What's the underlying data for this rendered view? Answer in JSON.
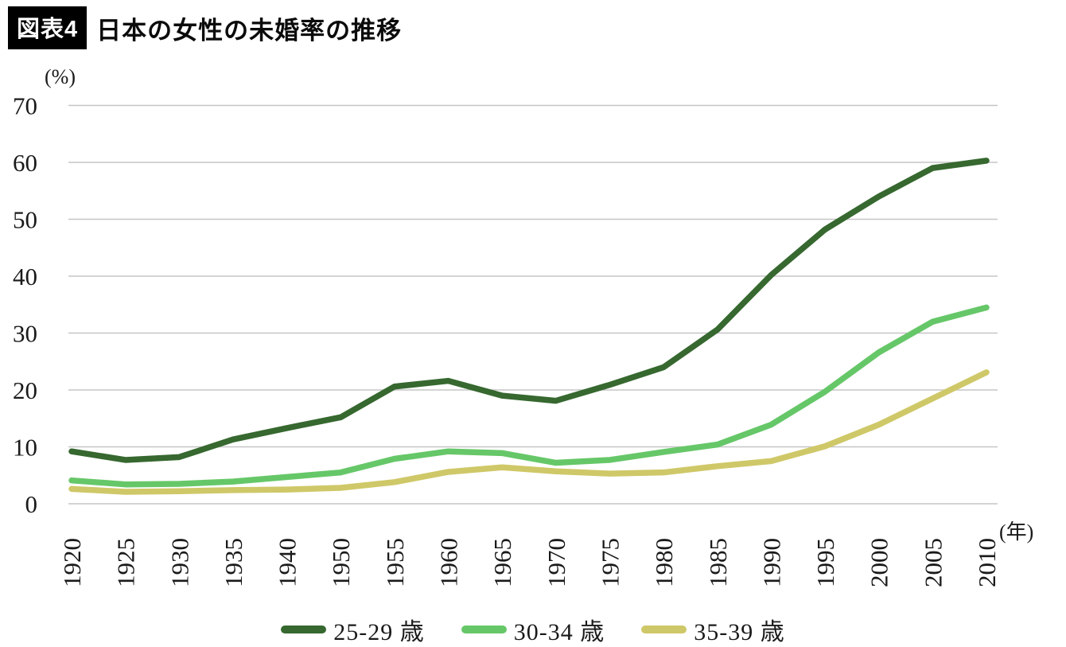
{
  "header": {
    "badge": "図表4",
    "title": "日本の女性の未婚率の推移"
  },
  "chart_data": {
    "type": "line",
    "title": "日本の女性の未婚率の推移",
    "y_unit_label": "(%)",
    "x_unit_label": "(年)",
    "ylim": [
      0,
      70
    ],
    "yticks": [
      0,
      10,
      20,
      30,
      40,
      50,
      60,
      70
    ],
    "grid": "horizontal",
    "gridline_color": "#c6c6c6",
    "legend_position": "bottom",
    "categories": [
      "1920",
      "1925",
      "1930",
      "1935",
      "1940",
      "1950",
      "1955",
      "1960",
      "1965",
      "1970",
      "1975",
      "1980",
      "1985",
      "1990",
      "1995",
      "2000",
      "2005",
      "2010"
    ],
    "series": [
      {
        "name": "25-29 歳",
        "color": "#36682f",
        "values": [
          9.2,
          7.7,
          8.2,
          11.3,
          13.3,
          15.2,
          20.6,
          21.6,
          19.0,
          18.1,
          20.9,
          24.0,
          30.6,
          40.2,
          48.2,
          54.0,
          59.0,
          60.3
        ]
      },
      {
        "name": "30-34 歳",
        "color": "#66c768",
        "values": [
          4.1,
          3.4,
          3.5,
          3.9,
          4.7,
          5.5,
          7.9,
          9.2,
          8.9,
          7.2,
          7.7,
          9.1,
          10.4,
          13.9,
          19.7,
          26.6,
          32.0,
          34.5
        ]
      },
      {
        "name": "35-39 歳",
        "color": "#cfc868",
        "values": [
          2.6,
          2.1,
          2.2,
          2.4,
          2.5,
          2.8,
          3.8,
          5.6,
          6.4,
          5.7,
          5.3,
          5.5,
          6.6,
          7.5,
          10.1,
          13.9,
          18.5,
          23.1
        ]
      }
    ]
  }
}
